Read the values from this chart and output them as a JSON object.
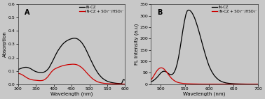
{
  "panel_A": {
    "title": "A",
    "xlabel": "Wavelength (nm)",
    "ylabel": "Absorption",
    "xlim": [
      300,
      600
    ],
    "ylim": [
      0,
      0.6
    ],
    "yticks": [
      0.0,
      0.1,
      0.2,
      0.3,
      0.4,
      0.5,
      0.6
    ],
    "xticks": [
      300,
      350,
      400,
      450,
      500,
      550,
      600
    ],
    "legend": [
      "IN-CZ",
      "IN-CZ + SO₃²⁻/HSO₃⁻"
    ],
    "black_curve_x": [
      300,
      305,
      308,
      312,
      316,
      320,
      324,
      328,
      332,
      336,
      340,
      344,
      348,
      352,
      356,
      360,
      364,
      368,
      372,
      376,
      380,
      384,
      388,
      392,
      396,
      400,
      404,
      408,
      412,
      416,
      420,
      424,
      428,
      432,
      436,
      440,
      444,
      448,
      452,
      456,
      460,
      464,
      468,
      472,
      476,
      480,
      484,
      488,
      492,
      496,
      500,
      504,
      508,
      512,
      516,
      520,
      524,
      528,
      532,
      536,
      540,
      544,
      548,
      552,
      556,
      560,
      565,
      570,
      575,
      580,
      585,
      590,
      595,
      600
    ],
    "black_curve_y": [
      0.11,
      0.115,
      0.118,
      0.122,
      0.125,
      0.127,
      0.127,
      0.125,
      0.121,
      0.116,
      0.109,
      0.103,
      0.097,
      0.093,
      0.09,
      0.088,
      0.087,
      0.087,
      0.09,
      0.095,
      0.102,
      0.113,
      0.128,
      0.148,
      0.168,
      0.19,
      0.212,
      0.233,
      0.252,
      0.268,
      0.283,
      0.297,
      0.308,
      0.317,
      0.325,
      0.331,
      0.336,
      0.34,
      0.343,
      0.345,
      0.345,
      0.343,
      0.338,
      0.33,
      0.32,
      0.307,
      0.291,
      0.272,
      0.251,
      0.228,
      0.205,
      0.182,
      0.16,
      0.138,
      0.118,
      0.1,
      0.083,
      0.069,
      0.057,
      0.046,
      0.038,
      0.031,
      0.025,
      0.02,
      0.017,
      0.014,
      0.011,
      0.009,
      0.007,
      0.006,
      0.005,
      0.004,
      0.035,
      0.03
    ],
    "red_curve_x": [
      300,
      305,
      308,
      312,
      316,
      320,
      324,
      328,
      332,
      336,
      340,
      344,
      348,
      352,
      356,
      360,
      364,
      368,
      372,
      376,
      380,
      384,
      388,
      392,
      396,
      400,
      404,
      408,
      412,
      416,
      420,
      424,
      428,
      432,
      436,
      440,
      444,
      448,
      452,
      456,
      460,
      464,
      468,
      472,
      476,
      480,
      484,
      488,
      492,
      496,
      500,
      504,
      508,
      512,
      516,
      520,
      524,
      528,
      532,
      536,
      540,
      544,
      548,
      552,
      556,
      560,
      565,
      570,
      575,
      580,
      585,
      590,
      595,
      600
    ],
    "red_curve_y": [
      0.082,
      0.079,
      0.076,
      0.071,
      0.064,
      0.057,
      0.05,
      0.044,
      0.039,
      0.036,
      0.033,
      0.031,
      0.03,
      0.029,
      0.028,
      0.027,
      0.027,
      0.028,
      0.031,
      0.037,
      0.046,
      0.057,
      0.072,
      0.087,
      0.099,
      0.109,
      0.116,
      0.121,
      0.126,
      0.13,
      0.134,
      0.138,
      0.141,
      0.143,
      0.145,
      0.147,
      0.148,
      0.149,
      0.15,
      0.15,
      0.149,
      0.147,
      0.143,
      0.137,
      0.13,
      0.121,
      0.111,
      0.099,
      0.087,
      0.075,
      0.064,
      0.053,
      0.043,
      0.035,
      0.028,
      0.022,
      0.017,
      0.014,
      0.011,
      0.009,
      0.007,
      0.006,
      0.005,
      0.004,
      0.003,
      0.003,
      0.002,
      0.002,
      0.002,
      0.002,
      0.001,
      0.001,
      0.001,
      0.001
    ]
  },
  "panel_B": {
    "title": "B",
    "xlabel": "Wavelength (nm)",
    "ylabel": "FL Intensity (a.u)",
    "xlim": [
      480,
      700
    ],
    "ylim": [
      0,
      350
    ],
    "yticks": [
      0,
      50,
      100,
      150,
      200,
      250,
      300,
      350
    ],
    "xticks": [
      500,
      550,
      600,
      650,
      700
    ],
    "legend": [
      "IN-CZ",
      "IN-CZ + SO₃²⁻/HSO₃⁻"
    ],
    "black_curve_x": [
      480,
      483,
      486,
      489,
      492,
      495,
      498,
      501,
      504,
      507,
      510,
      513,
      516,
      519,
      522,
      525,
      528,
      531,
      534,
      537,
      540,
      543,
      546,
      549,
      552,
      555,
      558,
      561,
      564,
      567,
      570,
      573,
      576,
      579,
      582,
      585,
      588,
      591,
      594,
      597,
      600,
      605,
      610,
      615,
      620,
      625,
      630,
      635,
      640,
      645,
      650,
      655,
      660,
      665,
      670,
      675,
      680,
      685,
      690,
      695,
      700
    ],
    "black_curve_y": [
      10,
      13,
      17,
      22,
      28,
      35,
      43,
      50,
      55,
      57,
      56,
      52,
      47,
      43,
      42,
      44,
      52,
      66,
      88,
      118,
      155,
      196,
      238,
      275,
      305,
      322,
      325,
      322,
      315,
      304,
      290,
      272,
      252,
      230,
      207,
      183,
      160,
      137,
      116,
      96,
      78,
      56,
      39,
      27,
      18,
      12,
      8,
      5.5,
      4,
      3,
      2.2,
      1.7,
      1.3,
      1.0,
      0.8,
      0.6,
      0.5,
      0.4,
      0.3,
      0.2,
      0.1
    ],
    "red_curve_x": [
      480,
      483,
      486,
      489,
      492,
      495,
      498,
      501,
      504,
      507,
      510,
      513,
      516,
      519,
      522,
      525,
      528,
      531,
      534,
      537,
      540,
      543,
      546,
      549,
      552,
      555,
      558,
      561,
      564,
      567,
      570,
      575,
      580,
      585,
      590,
      595,
      600,
      610,
      620,
      630,
      640,
      650,
      660,
      670,
      680,
      690,
      700
    ],
    "red_curve_y": [
      18,
      26,
      36,
      47,
      57,
      65,
      70,
      72,
      71,
      67,
      60,
      52,
      43,
      35,
      27,
      21,
      16,
      12,
      9,
      7,
      5.5,
      4.5,
      3.5,
      3,
      2.5,
      2,
      1.8,
      1.5,
      1.3,
      1.1,
      1.0,
      0.8,
      0.6,
      0.5,
      0.4,
      0.3,
      0.3,
      0.2,
      0.15,
      0.1,
      0.08,
      0.06,
      0.05,
      0.04,
      0.03,
      0.02,
      0.01
    ]
  },
  "fig_facecolor": "#c8c8c8",
  "axes_facecolor": "#c8c8c8",
  "black_color": "#000000",
  "red_color": "#cc0000"
}
